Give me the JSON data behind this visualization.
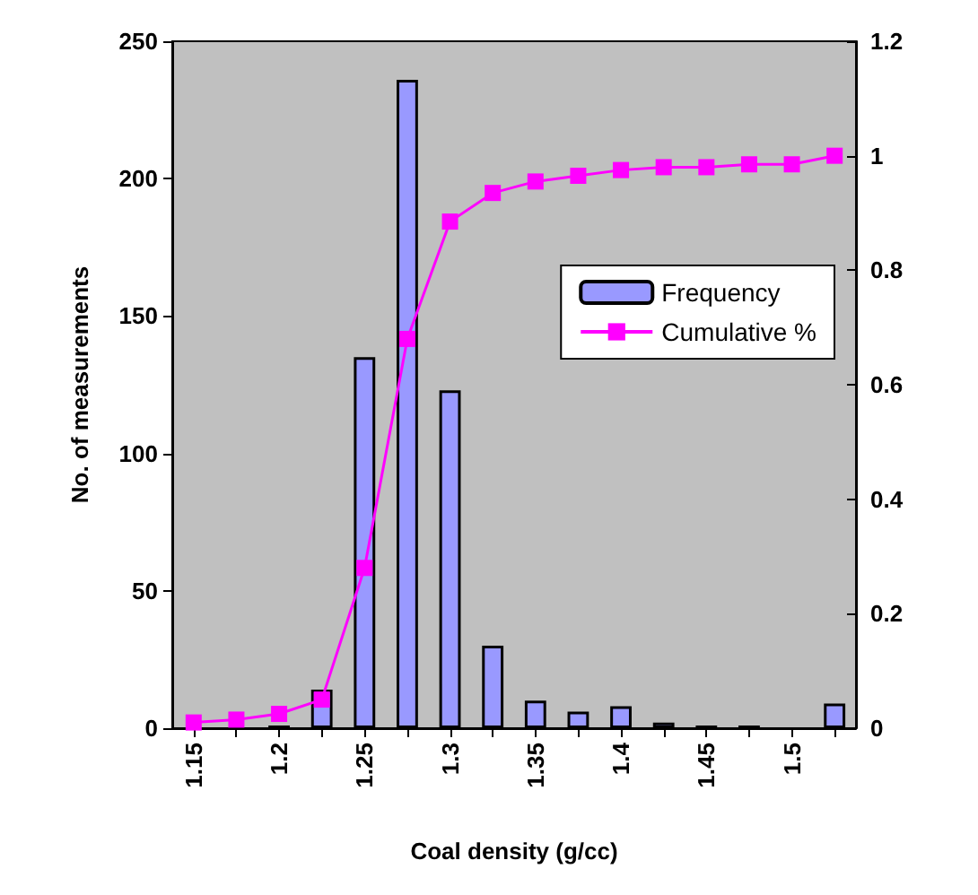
{
  "chart_data": {
    "type": "bar",
    "xlabel": "Coal density (g/cc)",
    "ylabel": "No. of measurements",
    "categories": [
      "1.15",
      null,
      "1.2",
      null,
      "1.25",
      null,
      "1.3",
      null,
      "1.35",
      null,
      "1.4",
      null,
      "1.45",
      null,
      "1.5",
      null
    ],
    "series": [
      {
        "name": "Frequency",
        "color": "#9999ff",
        "values": [
          0,
          null,
          1,
          14,
          135,
          236,
          123,
          30,
          10,
          6,
          8,
          2,
          1,
          1,
          0,
          9
        ]
      },
      {
        "name": "Cumulative %",
        "type": "line",
        "axis": "y2",
        "color": "#ff00ff",
        "marker": "square",
        "values": [
          0.01,
          0.015,
          0.025,
          0.05,
          0.28,
          0.68,
          0.885,
          0.935,
          0.955,
          0.965,
          0.975,
          0.98,
          0.98,
          0.985,
          0.985,
          1.0
        ]
      }
    ],
    "ylim": [
      0,
      250
    ],
    "yticks": [
      0,
      50,
      100,
      150,
      200,
      250
    ],
    "y2lim": [
      0,
      1.2
    ],
    "y2ticks": [
      0,
      0.2,
      0.4,
      0.6,
      0.8,
      1,
      1.2
    ],
    "grid": false,
    "legend": "right"
  }
}
